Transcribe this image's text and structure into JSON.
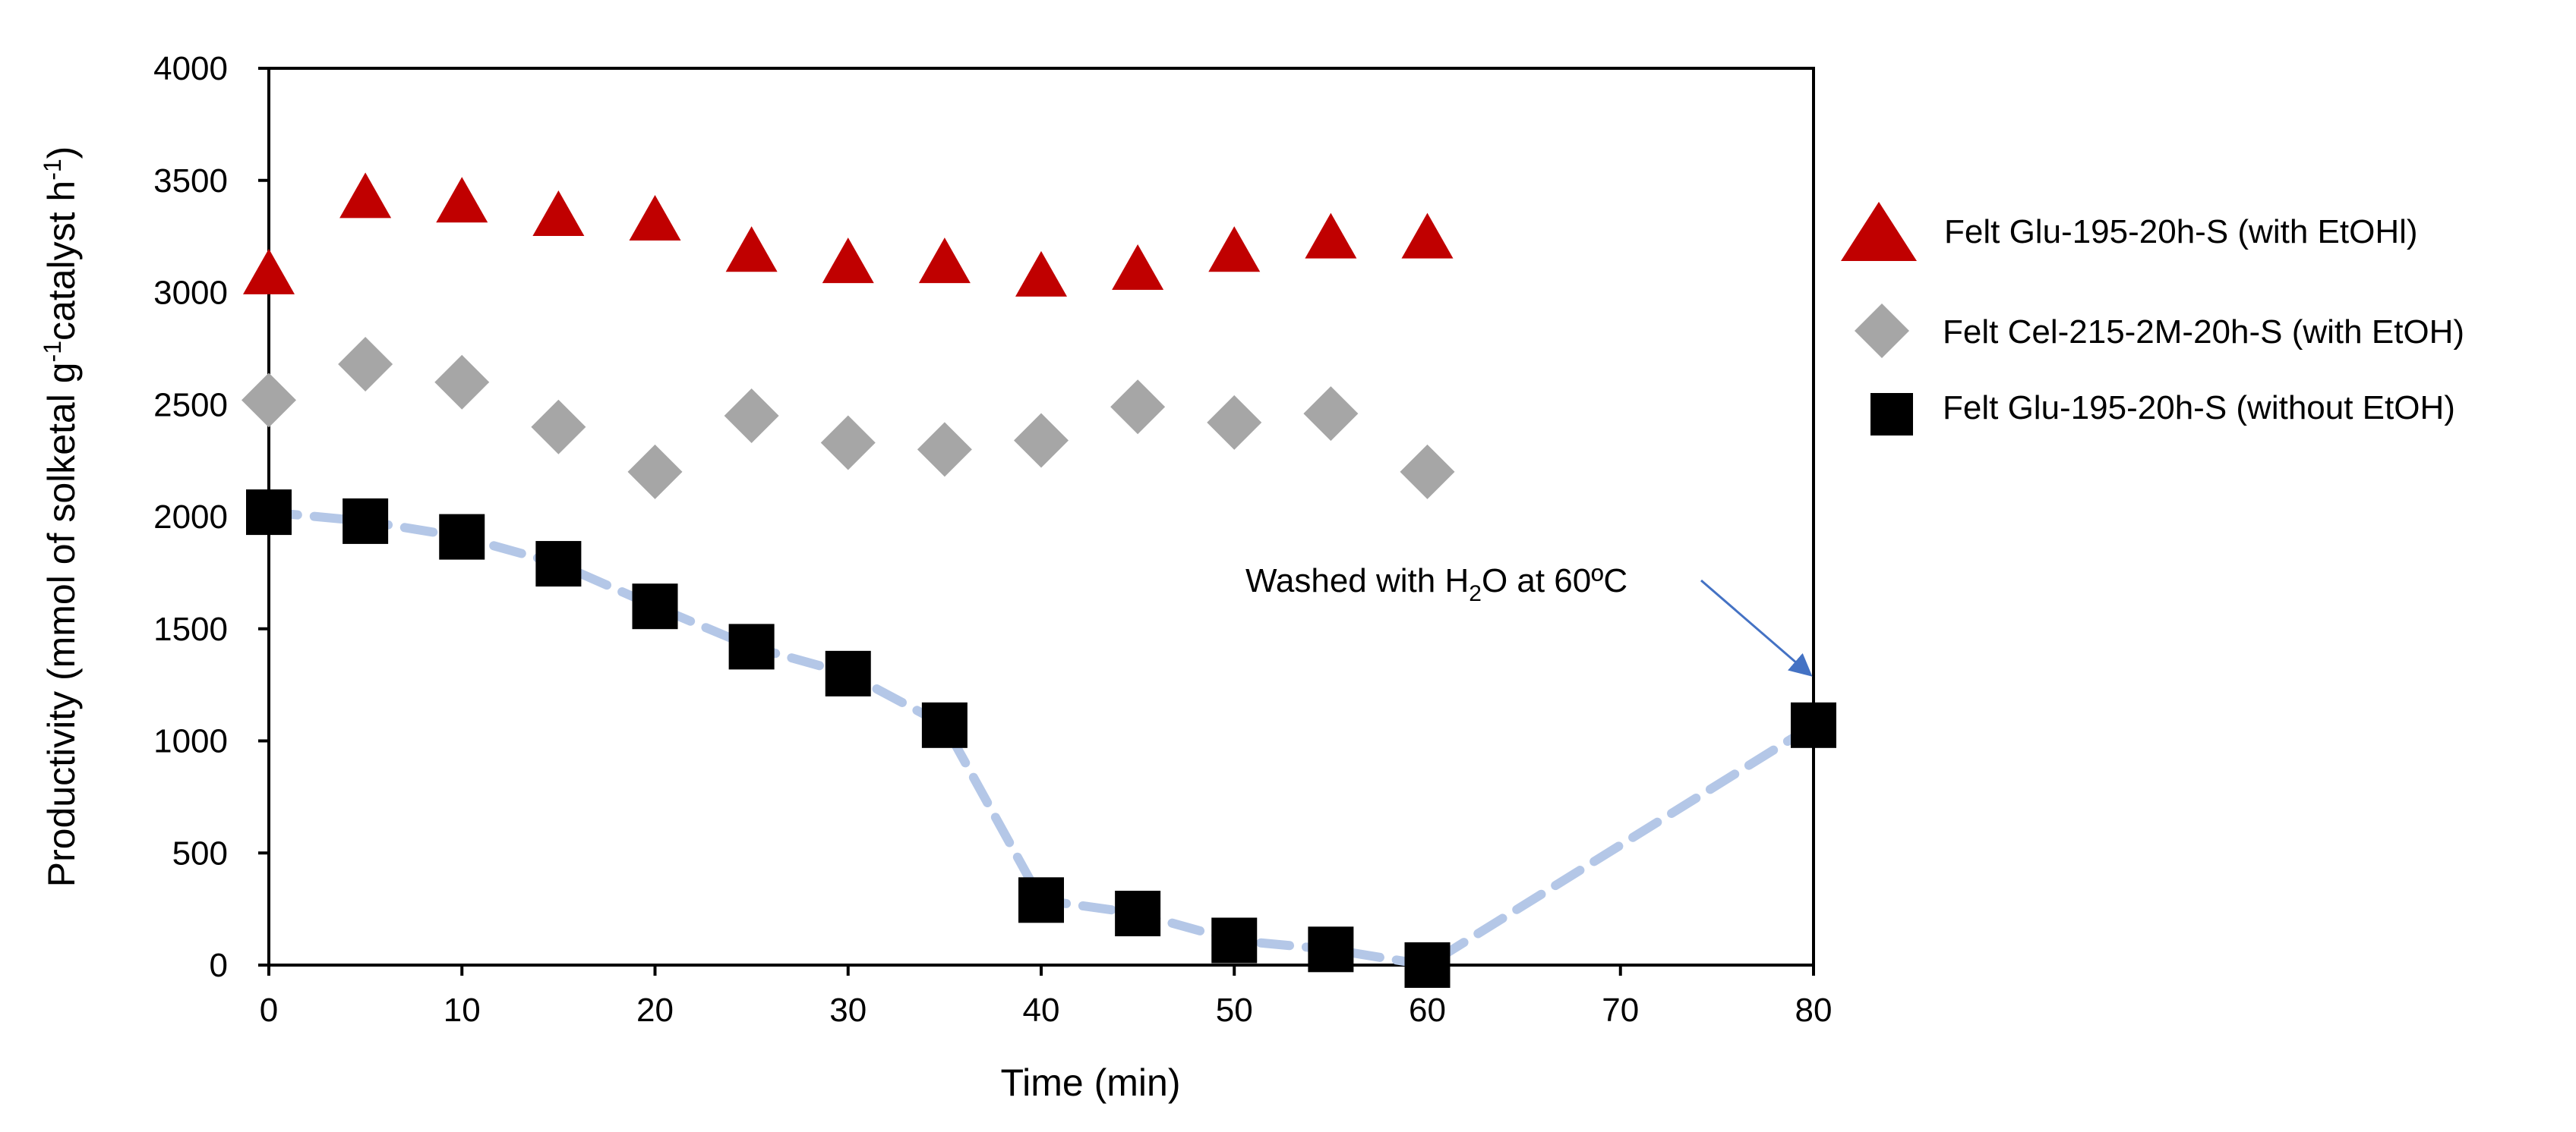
{
  "chart_data": {
    "type": "scatter",
    "title": "",
    "xlabel": "Time (min)",
    "ylabel": {
      "main": "Productivity (mmol of solketal g",
      "sup1": "-1",
      "middle": "catalyst h",
      "sup2": "-1",
      "end": ")"
    },
    "xlim": [
      0,
      80
    ],
    "ylim": [
      0,
      4000
    ],
    "x_ticks": [
      0,
      10,
      20,
      30,
      40,
      50,
      60,
      70,
      80
    ],
    "y_ticks": [
      0,
      500,
      1000,
      1500,
      2000,
      2500,
      3000,
      3500,
      4000
    ],
    "grid": false,
    "legend_position": "right",
    "series": [
      {
        "name": "Felt Glu-195-20h-S (with EtOHl)",
        "marker": "triangle",
        "color": "#C00000",
        "x": [
          0,
          5,
          10,
          15,
          20,
          25,
          30,
          35,
          40,
          45,
          50,
          55,
          60
        ],
        "y": [
          3080,
          3420,
          3400,
          3340,
          3320,
          3180,
          3130,
          3130,
          3070,
          3100,
          3180,
          3240,
          3240
        ]
      },
      {
        "name": "Felt Cel-215-2M-20h-S (with EtOH)",
        "marker": "diamond",
        "color": "#A6A6A6",
        "x": [
          0,
          5,
          10,
          15,
          20,
          25,
          30,
          35,
          40,
          45,
          50,
          55,
          60
        ],
        "y": [
          2520,
          2680,
          2600,
          2400,
          2200,
          2450,
          2330,
          2300,
          2340,
          2490,
          2420,
          2460,
          2200
        ]
      },
      {
        "name": "Felt Glu-195-20h-S (without EtOH)",
        "marker": "square",
        "color": "#000000",
        "line_color": "#B4C7E7",
        "line_style": "dashed",
        "x": [
          0,
          5,
          10,
          15,
          20,
          25,
          30,
          35,
          40,
          45,
          50,
          55,
          60,
          80
        ],
        "y": [
          2020,
          1980,
          1910,
          1790,
          1600,
          1420,
          1300,
          1070,
          290,
          230,
          110,
          70,
          0,
          1070
        ]
      }
    ],
    "annotation": {
      "text_before": "Washed with H",
      "subscript": "2",
      "text_after": "O at 60ºC",
      "arrow_to_x": 80,
      "arrow_to_y": 1300,
      "arrow_color": "#4472C4"
    }
  }
}
